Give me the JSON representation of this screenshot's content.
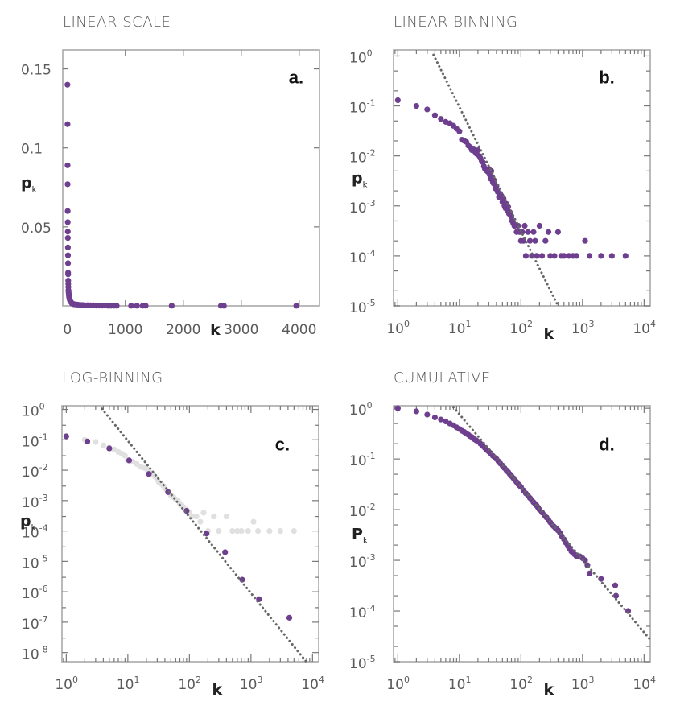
{
  "colors": {
    "data": "#6f3f8f",
    "raw": "#e0e0e0",
    "fit": "#666666",
    "frame": "#a8a8a8"
  },
  "chart_data": [
    {
      "id": "a",
      "type": "scatter",
      "title": "LINEAR SCALE",
      "panel_label": "a.",
      "xlabel": "k",
      "ylabel": "p",
      "ylabel_sub": "k",
      "xscale": "linear",
      "yscale": "linear",
      "xlim": [
        -80,
        4350
      ],
      "ylim": [
        0,
        0.162
      ],
      "xticks": [
        {
          "v": 0,
          "t": "0"
        },
        {
          "v": 1000,
          "t": "1000"
        },
        {
          "v": 2000,
          "t": "2000"
        },
        {
          "v": 3000,
          "t": "3000"
        },
        {
          "v": 4000,
          "t": "4000"
        }
      ],
      "yticks": [
        {
          "v": 0.05,
          "t": "0.05"
        },
        {
          "v": 0.1,
          "t": "0.1"
        },
        {
          "v": 0.15,
          "t": "0.15"
        }
      ],
      "series": [
        {
          "name": "p_k",
          "color": "#6f3f8f",
          "x": [
            1,
            2,
            3,
            4,
            5,
            6,
            7,
            8,
            9,
            10,
            11,
            12,
            13,
            14,
            15,
            16,
            18,
            20,
            22,
            25,
            28,
            32,
            36,
            40,
            45,
            50,
            60,
            70,
            80,
            100,
            120,
            150,
            180,
            220,
            260,
            300,
            350,
            400,
            450,
            500,
            550,
            600,
            650,
            700,
            750,
            800,
            850,
            1100,
            1200,
            1300,
            1350,
            1800,
            2650,
            2700,
            3950
          ],
          "y": [
            0.14,
            0.115,
            0.089,
            0.077,
            0.06,
            0.053,
            0.047,
            0.043,
            0.037,
            0.032,
            0.027,
            0.021,
            0.02,
            0.016,
            0.014,
            0.012,
            0.01,
            0.009,
            0.008,
            0.007,
            0.006,
            0.005,
            0.0045,
            0.004,
            0.0035,
            0.003,
            0.0025,
            0.002,
            0.0015,
            0.0012,
            0.001,
            0.0009,
            0.0008,
            0.0006,
            0.0005,
            0.0004,
            0.0004,
            0.0003,
            0.0003,
            0.0002,
            0.0002,
            0.0002,
            0.0002,
            0.0001,
            0.0001,
            0.0001,
            0.0001,
            0.0001,
            0.0001,
            0.0001,
            0.0001,
            0.0001,
            0.0001,
            0.0001,
            0.0001
          ]
        }
      ]
    },
    {
      "id": "b",
      "type": "scatter",
      "title": "LINEAR BINNING",
      "panel_label": "b.",
      "xlabel": "k",
      "ylabel": "p",
      "ylabel_sub": "k",
      "xscale": "log",
      "yscale": "log",
      "xlim_exp": [
        -0.07,
        4.1
      ],
      "ylim_exp": [
        -5,
        0.12
      ],
      "xticks": [
        {
          "e": 0,
          "t": "10",
          "s": "0"
        },
        {
          "e": 1,
          "t": "10",
          "s": "1"
        },
        {
          "e": 2,
          "t": "10",
          "s": "2"
        },
        {
          "e": 3,
          "t": "10",
          "s": "3"
        },
        {
          "e": 4,
          "t": "10",
          "s": "4"
        }
      ],
      "yticks": [
        {
          "e": 0,
          "t": "10",
          "s": "0"
        },
        {
          "e": -1,
          "t": "10",
          "s": "-1"
        },
        {
          "e": -2,
          "t": "10",
          "s": "-2"
        },
        {
          "e": -3,
          "t": "10",
          "s": "-3"
        },
        {
          "e": -4,
          "t": "10",
          "s": "-4"
        },
        {
          "e": -5,
          "t": "10",
          "s": "-5"
        }
      ],
      "fit": {
        "name": "power-law fit",
        "style": "dotted",
        "x": [
          3.8,
          400
        ],
        "y": [
          1.05,
          1e-05
        ]
      },
      "series": [
        {
          "name": "p_k",
          "color": "#6f3f8f",
          "x": [
            1,
            2,
            3,
            4,
            5,
            6,
            7,
            8,
            9,
            10,
            11,
            12,
            13,
            14,
            15,
            16,
            17,
            18,
            19,
            20,
            21,
            22,
            23,
            24,
            25,
            26,
            27,
            28,
            29,
            30,
            31,
            32,
            33,
            34,
            35,
            36,
            37,
            38,
            39,
            40,
            42,
            44,
            46,
            48,
            50,
            52,
            54,
            56,
            58,
            60,
            62,
            64,
            66,
            68,
            70,
            72,
            75,
            78,
            80,
            85,
            90,
            95,
            100,
            105,
            110,
            115,
            120,
            130,
            140,
            150,
            160,
            170,
            180,
            200,
            220,
            250,
            280,
            300,
            350,
            400,
            450,
            500,
            600,
            700,
            800,
            1100,
            1300,
            2000,
            3000,
            5000
          ],
          "y": [
            0.13,
            0.1,
            0.085,
            0.065,
            0.055,
            0.048,
            0.045,
            0.04,
            0.035,
            0.031,
            0.021,
            0.02,
            0.019,
            0.016,
            0.015,
            0.013,
            0.014,
            0.012,
            0.011,
            0.013,
            0.01,
            0.009,
            0.008,
            0.0075,
            0.0062,
            0.0055,
            0.0052,
            0.005,
            0.0048,
            0.0055,
            0.0042,
            0.0035,
            0.005,
            0.0038,
            0.003,
            0.0028,
            0.0032,
            0.0026,
            0.0022,
            0.0025,
            0.0019,
            0.0015,
            0.0017,
            0.0016,
            0.0012,
            0.0014,
            0.001,
            0.0009,
            0.0011,
            0.0008,
            0.00095,
            0.0007,
            0.00075,
            0.00065,
            0.0006,
            0.0005,
            0.00045,
            0.0004,
            0.0004,
            0.0003,
            0.0004,
            0.0003,
            0.0002,
            0.0003,
            0.0002,
            0.0004,
            0.0001,
            0.0003,
            0.0002,
            0.0001,
            0.0003,
            0.0002,
            0.0001,
            0.0004,
            0.0001,
            0.0002,
            0.0003,
            0.0001,
            0.0001,
            0.0003,
            0.0001,
            0.0001,
            0.0001,
            0.0001,
            0.0001,
            0.0002,
            0.0001,
            0.0001,
            0.0001,
            0.0001
          ]
        }
      ]
    },
    {
      "id": "c",
      "type": "scatter",
      "title": "LOG-BINNING",
      "panel_label": "c.",
      "xlabel": "k",
      "ylabel": "p",
      "ylabel_sub": "k",
      "xscale": "log",
      "yscale": "log",
      "xlim_exp": [
        -0.07,
        4.1
      ],
      "ylim_exp": [
        -8.3,
        0.12
      ],
      "xticks": [
        {
          "e": 0,
          "t": "10",
          "s": "0"
        },
        {
          "e": 1,
          "t": "10",
          "s": "1"
        },
        {
          "e": 2,
          "t": "10",
          "s": "2"
        },
        {
          "e": 3,
          "t": "10",
          "s": "3"
        },
        {
          "e": 4,
          "t": "10",
          "s": "4"
        }
      ],
      "yticks": [
        {
          "e": 0,
          "t": "10",
          "s": "0"
        },
        {
          "e": -1,
          "t": "10",
          "s": "-1"
        },
        {
          "e": -2,
          "t": "10",
          "s": "-2"
        },
        {
          "e": -3,
          "t": "10",
          "s": "-3"
        },
        {
          "e": -4,
          "t": "10",
          "s": "-4"
        },
        {
          "e": -5,
          "t": "10",
          "s": "-5"
        },
        {
          "e": -6,
          "t": "10",
          "s": "-6"
        },
        {
          "e": -7,
          "t": "10",
          "s": "-7"
        },
        {
          "e": -8,
          "t": "10",
          "s": "-8"
        }
      ],
      "fit": {
        "name": "power-law fit",
        "style": "dotted",
        "x": [
          3.8,
          8500
        ],
        "y": [
          1.05,
          4.2e-09
        ]
      },
      "series": [
        {
          "name": "linear-binned (background)",
          "color": "#e0e0e0",
          "x": [
            2,
            3,
            4,
            5,
            6,
            7,
            8,
            9,
            10,
            12,
            14,
            16,
            18,
            20,
            22,
            25,
            28,
            30,
            32,
            35,
            38,
            40,
            45,
            50,
            55,
            60,
            65,
            70,
            75,
            80,
            90,
            100,
            110,
            130,
            150,
            170,
            200,
            250,
            300,
            400,
            500,
            600,
            700,
            900,
            1100,
            1300,
            2000,
            3000,
            5000
          ],
          "y": [
            0.1,
            0.085,
            0.065,
            0.055,
            0.048,
            0.04,
            0.035,
            0.03,
            0.021,
            0.019,
            0.016,
            0.013,
            0.012,
            0.011,
            0.009,
            0.007,
            0.006,
            0.005,
            0.004,
            0.0035,
            0.003,
            0.0025,
            0.002,
            0.0015,
            0.0013,
            0.0011,
            0.001,
            0.0008,
            0.0007,
            0.0006,
            0.0005,
            0.0004,
            0.0003,
            0.0003,
            0.0002,
            0.0004,
            0.0001,
            0.0003,
            0.0001,
            0.0003,
            0.0001,
            0.0001,
            0.0001,
            0.0001,
            0.0002,
            0.0001,
            0.0001,
            0.0001,
            0.0001
          ]
        },
        {
          "name": "log-binned p_k",
          "color": "#6f3f8f",
          "x": [
            1,
            2.2,
            5,
            10.5,
            22,
            45,
            90,
            190,
            380,
            720,
            1350,
            4200
          ],
          "y": [
            0.13,
            0.088,
            0.052,
            0.021,
            0.0075,
            0.0019,
            0.00046,
            8.2e-05,
            2e-05,
            2.5e-06,
            5.7e-07,
            1.4e-07
          ]
        }
      ]
    },
    {
      "id": "d",
      "type": "scatter",
      "title": "CUMULATIVE",
      "panel_label": "d.",
      "xlabel": "k",
      "ylabel": "P",
      "ylabel_sub": "k",
      "xscale": "log",
      "yscale": "log",
      "xlim_exp": [
        -0.07,
        4.1
      ],
      "ylim_exp": [
        -5,
        0.05
      ],
      "xticks": [
        {
          "e": 0,
          "t": "10",
          "s": "0"
        },
        {
          "e": 1,
          "t": "10",
          "s": "1"
        },
        {
          "e": 2,
          "t": "10",
          "s": "2"
        },
        {
          "e": 3,
          "t": "10",
          "s": "3"
        },
        {
          "e": 4,
          "t": "10",
          "s": "4"
        }
      ],
      "yticks": [
        {
          "e": 0,
          "t": "10",
          "s": "0"
        },
        {
          "e": -1,
          "t": "10",
          "s": "-1"
        },
        {
          "e": -2,
          "t": "10",
          "s": "-2"
        },
        {
          "e": -3,
          "t": "10",
          "s": "-3"
        },
        {
          "e": -4,
          "t": "10",
          "s": "-4"
        },
        {
          "e": -5,
          "t": "10",
          "s": "-5"
        }
      ],
      "fit": {
        "name": "power-law fit",
        "style": "dotted",
        "x": [
          8,
          13000
        ],
        "y": [
          1.05,
          2.6e-05
        ]
      },
      "series": [
        {
          "name": "P_k",
          "color": "#6f3f8f",
          "x": [
            1,
            2,
            3,
            4,
            5,
            6,
            7,
            8,
            9,
            10,
            11,
            12,
            13,
            14,
            15,
            16,
            17,
            18,
            19,
            20,
            22,
            24,
            26,
            28,
            30,
            32,
            35,
            38,
            40,
            43,
            46,
            50,
            54,
            58,
            62,
            66,
            70,
            75,
            80,
            85,
            90,
            95,
            100,
            110,
            120,
            130,
            140,
            150,
            160,
            170,
            180,
            190,
            200,
            220,
            240,
            260,
            280,
            300,
            320,
            340,
            360,
            380,
            400,
            430,
            460,
            500,
            540,
            580,
            620,
            660,
            700,
            750,
            800,
            900,
            1000,
            1100,
            1200,
            1300,
            2000,
            3400,
            3500,
            5500
          ],
          "y": [
            1.0,
            0.87,
            0.75,
            0.66,
            0.6,
            0.55,
            0.5,
            0.46,
            0.42,
            0.39,
            0.36,
            0.34,
            0.32,
            0.3,
            0.28,
            0.27,
            0.25,
            0.24,
            0.23,
            0.22,
            0.2,
            0.18,
            0.165,
            0.15,
            0.14,
            0.13,
            0.115,
            0.105,
            0.1,
            0.09,
            0.082,
            0.074,
            0.066,
            0.06,
            0.055,
            0.05,
            0.046,
            0.042,
            0.038,
            0.035,
            0.032,
            0.03,
            0.028,
            0.024,
            0.021,
            0.019,
            0.017,
            0.0155,
            0.014,
            0.013,
            0.012,
            0.011,
            0.01,
            0.0088,
            0.0078,
            0.007,
            0.0062,
            0.0056,
            0.005,
            0.0047,
            0.0044,
            0.0042,
            0.0039,
            0.0035,
            0.003,
            0.0026,
            0.0022,
            0.0019,
            0.0017,
            0.0015,
            0.0014,
            0.0013,
            0.0012,
            0.0012,
            0.0011,
            0.001,
            0.0008,
            0.00055,
            0.00043,
            0.00032,
            0.0002,
            0.0001
          ]
        }
      ]
    }
  ]
}
